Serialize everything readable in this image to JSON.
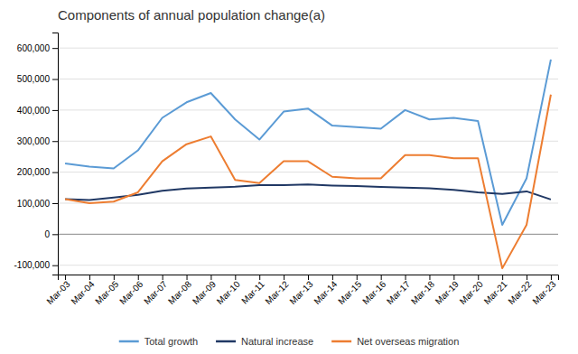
{
  "chart_data": {
    "type": "line",
    "title": "Components of annual population change(a)",
    "categories": [
      "Mar-03",
      "Mar-04",
      "Mar-05",
      "Mar-06",
      "Mar-07",
      "Mar-08",
      "Mar-09",
      "Mar-10",
      "Mar-11",
      "Mar-12",
      "Mar-13",
      "Mar-14",
      "Mar-15",
      "Mar-16",
      "Mar-17",
      "Mar-18",
      "Mar-19",
      "Mar-20",
      "Mar-21",
      "Mar-22",
      "Mar-23"
    ],
    "series": [
      {
        "name": "Total growth",
        "color": "#5b9bd5",
        "values": [
          228000,
          218000,
          212000,
          270000,
          375000,
          425000,
          455000,
          370000,
          305000,
          395000,
          405000,
          350000,
          345000,
          340000,
          400000,
          370000,
          375000,
          365000,
          30000,
          180000,
          563000
        ]
      },
      {
        "name": "Natural increase",
        "color": "#203864",
        "values": [
          113000,
          110000,
          118000,
          127000,
          140000,
          147000,
          150000,
          153000,
          158000,
          158000,
          160000,
          157000,
          155000,
          152000,
          150000,
          148000,
          143000,
          135000,
          130000,
          138000,
          112000
        ]
      },
      {
        "name": "Net overseas migration",
        "color": "#ed7d31",
        "values": [
          113000,
          100000,
          105000,
          135000,
          235000,
          290000,
          315000,
          175000,
          165000,
          235000,
          235000,
          185000,
          180000,
          180000,
          255000,
          255000,
          245000,
          245000,
          -110000,
          30000,
          450000
        ]
      }
    ],
    "ylim": [
      -130000,
      650000
    ],
    "yticks": [
      {
        "value": -100000,
        "label": "-100,000"
      },
      0,
      {
        "value": 100000,
        "label": "100,000"
      },
      {
        "value": 200000,
        "label": "200,000"
      },
      {
        "value": 300000,
        "label": "300,000"
      },
      {
        "value": 400000,
        "label": "400,000"
      },
      {
        "value": 500000,
        "label": "500,000"
      },
      {
        "value": 600000,
        "label": "600,000"
      }
    ],
    "grid": true,
    "legend": "bottom"
  }
}
